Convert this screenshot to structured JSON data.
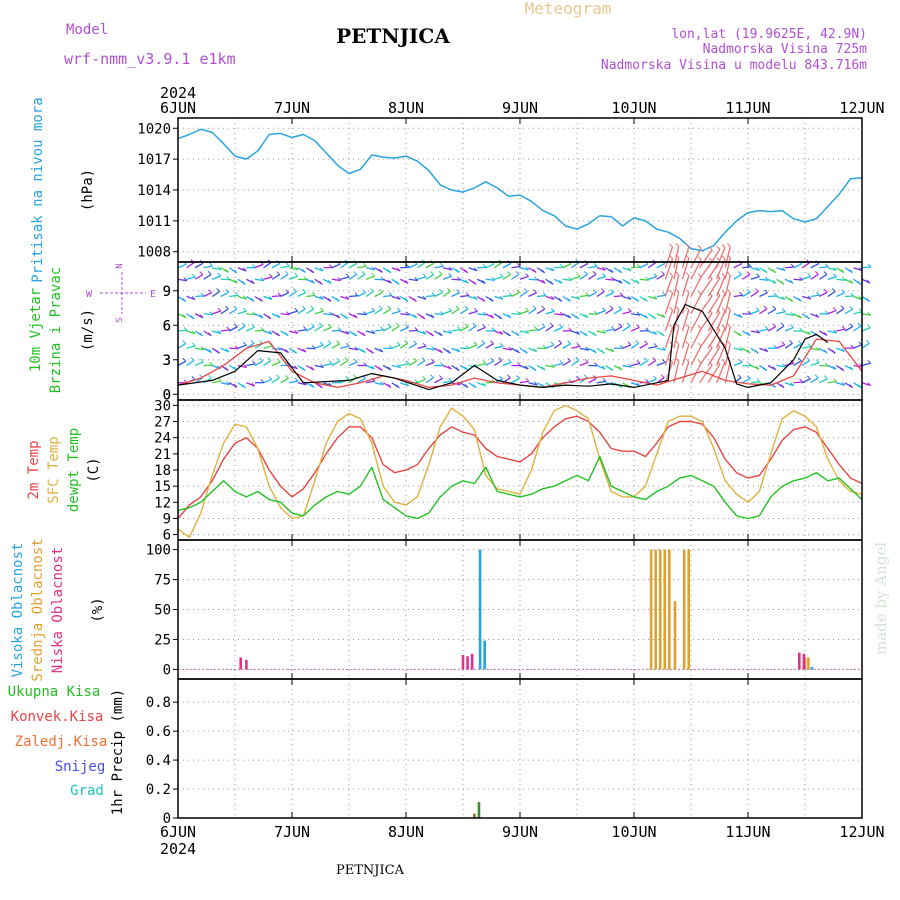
{
  "header": {
    "model_label": "Model",
    "model_name": "wrf-nmm_v3.9.1 e1km",
    "station": "PETNJICA",
    "meteogram": "Meteogram",
    "lonlat": "lon,lat (19.9625E, 42.9N)",
    "altitude": "Nadmorska Visina 725m",
    "model_altitude": "Nadmorska Visina u modelu 843.716m",
    "year": "2024",
    "footer_station": "PETNJICA",
    "watermark": "made by Angel"
  },
  "colors": {
    "pressure": "#29a3e0",
    "temp2m": "#e84545",
    "sfc_temp": "#e0b040",
    "dewpt": "#22c022",
    "high_cloud": "#29a3e0",
    "mid_cloud": "#e0a030",
    "low_cloud": "#e0308a",
    "total_precip": "#22c022",
    "conv_precip": "#e84545",
    "frozen": "#f07030",
    "snow": "#4a4ae0",
    "hail": "#20c0c0",
    "wind_label": "#22c022",
    "wind_axis": "#b050d0",
    "gust_line": "#000000",
    "wind_speed_line": "#e84545"
  },
  "chart_data": [
    {
      "type": "line",
      "panel": "pressure",
      "ylabel": [
        "Pritisak na nivou mora",
        "(hPa)"
      ],
      "x_ticks": [
        "6JUN",
        "7JUN",
        "8JUN",
        "9JUN",
        "10JUN",
        "11JUN",
        "12JUN"
      ],
      "y_ticks": [
        1008,
        1011,
        1014,
        1017,
        1020
      ],
      "ylim": [
        1007,
        1021
      ],
      "grid": true,
      "series": [
        {
          "x": [
            0,
            0.1,
            0.2,
            0.3,
            0.4,
            0.5,
            0.6,
            0.7,
            0.8,
            0.9,
            1.0,
            1.1,
            1.2,
            1.3,
            1.4,
            1.5,
            1.6,
            1.7,
            1.8,
            1.9,
            2.0,
            2.1,
            2.2,
            2.3,
            2.4,
            2.5,
            2.6,
            2.7,
            2.8,
            2.9,
            3.0,
            3.1,
            3.2,
            3.3,
            3.4,
            3.5,
            3.6,
            3.7,
            3.8,
            3.9,
            4.0,
            4.1,
            4.2,
            4.3,
            4.4,
            4.5,
            4.6,
            4.7,
            4.8,
            4.9,
            5.0,
            5.1,
            5.2,
            5.3,
            5.4,
            5.5,
            5.6,
            5.7,
            5.8,
            5.9,
            6.0
          ],
          "values": [
            1019.0,
            1019.4,
            1019.9,
            1019.6,
            1018.5,
            1017.3,
            1017.0,
            1017.8,
            1019.4,
            1019.5,
            1019.1,
            1019.4,
            1018.8,
            1017.6,
            1016.4,
            1015.6,
            1016.0,
            1017.4,
            1017.2,
            1017.1,
            1017.3,
            1016.8,
            1015.9,
            1014.5,
            1014.0,
            1013.8,
            1014.2,
            1014.8,
            1014.2,
            1013.4,
            1013.5,
            1012.9,
            1012.0,
            1011.5,
            1010.5,
            1010.2,
            1010.7,
            1011.5,
            1011.4,
            1010.5,
            1011.3,
            1011.0,
            1010.2,
            1009.9,
            1009.3,
            1008.3,
            1008.1,
            1008.6,
            1009.9,
            1011.0,
            1011.8,
            1012.0,
            1011.9,
            1012.0,
            1011.2,
            1010.9,
            1011.2,
            1012.4,
            1013.6,
            1015.1,
            1015.2
          ]
        }
      ]
    },
    {
      "type": "line",
      "panel": "wind",
      "ylabel": [
        "10m Vjetar",
        "Brzina i Pravac",
        "(m/s)"
      ],
      "compass": [
        "N",
        "W",
        "S",
        "E"
      ],
      "y_ticks": [
        0,
        3,
        6,
        9
      ],
      "ylim": [
        -0.5,
        11.5
      ],
      "grid": true,
      "barb_levels": [
        1,
        2.5,
        4,
        5.5,
        7,
        8.5,
        10,
        11
      ],
      "series": [
        {
          "name": "gust",
          "x": [
            0.0,
            0.3,
            0.5,
            0.7,
            0.9,
            1.1,
            1.5,
            1.7,
            1.9,
            2.2,
            2.4,
            2.6,
            2.8,
            3.0,
            3.2,
            3.4,
            3.6,
            3.8,
            4.0,
            4.2,
            4.3,
            4.35,
            4.45,
            4.6,
            4.8,
            4.9,
            5.0,
            5.2,
            5.4,
            5.5,
            5.6,
            5.7
          ],
          "values": [
            0.8,
            1.2,
            2.0,
            3.8,
            3.6,
            1.0,
            1.2,
            1.8,
            1.4,
            0.4,
            1.0,
            2.5,
            1.2,
            0.8,
            0.6,
            0.8,
            0.7,
            0.9,
            0.6,
            1.0,
            1.2,
            6.0,
            7.8,
            7.2,
            4.0,
            0.9,
            0.6,
            1.0,
            3.0,
            4.8,
            5.2,
            4.5
          ]
        },
        {
          "name": "speed",
          "x": [
            0.0,
            0.2,
            0.4,
            0.6,
            0.8,
            1.0,
            1.2,
            1.4,
            1.6,
            1.8,
            2.0,
            2.2,
            2.4,
            2.6,
            2.8,
            3.0,
            3.2,
            3.4,
            3.6,
            3.8,
            4.0,
            4.2,
            4.4,
            4.6,
            4.8,
            5.0,
            5.2,
            5.4,
            5.6,
            5.8,
            6.0
          ],
          "values": [
            0.8,
            1.4,
            2.5,
            4.0,
            4.6,
            2.0,
            1.0,
            0.6,
            1.0,
            1.6,
            1.2,
            0.6,
            0.8,
            1.4,
            1.0,
            0.8,
            0.6,
            1.0,
            1.4,
            1.6,
            1.2,
            0.8,
            1.4,
            2.0,
            1.2,
            0.9,
            0.8,
            1.6,
            4.8,
            4.6,
            2.0
          ]
        }
      ]
    },
    {
      "type": "line",
      "panel": "temperature",
      "ylabel": [
        "2m Temp",
        "SFC Temp",
        "dewpt Temp",
        "(C)"
      ],
      "y_ticks": [
        6,
        9,
        12,
        15,
        18,
        21,
        24,
        27,
        30
      ],
      "ylim": [
        5,
        31
      ],
      "grid": true,
      "series": [
        {
          "name": "2m Temp",
          "x": [
            0,
            0.1,
            0.2,
            0.3,
            0.4,
            0.5,
            0.6,
            0.7,
            0.8,
            0.9,
            1.0,
            1.1,
            1.2,
            1.3,
            1.4,
            1.5,
            1.6,
            1.7,
            1.8,
            1.9,
            2.0,
            2.1,
            2.2,
            2.3,
            2.4,
            2.5,
            2.6,
            2.7,
            2.8,
            2.9,
            3.0,
            3.1,
            3.2,
            3.3,
            3.4,
            3.5,
            3.6,
            3.7,
            3.8,
            3.9,
            4.0,
            4.1,
            4.2,
            4.3,
            4.4,
            4.5,
            4.6,
            4.7,
            4.8,
            4.9,
            5.0,
            5.1,
            5.2,
            5.3,
            5.4,
            5.5,
            5.6,
            5.7,
            5.8,
            5.9,
            6.0
          ],
          "values": [
            9.0,
            11.5,
            13.0,
            16.0,
            20.0,
            23.0,
            24.0,
            22.0,
            18.0,
            15.0,
            13.0,
            14.5,
            17.5,
            21.0,
            24.0,
            26.0,
            26.0,
            24.0,
            19.0,
            17.5,
            18.0,
            19.0,
            22.0,
            24.5,
            26.0,
            25.0,
            24.5,
            22.0,
            20.5,
            20.0,
            19.5,
            21.0,
            24.0,
            26.0,
            27.5,
            28.0,
            27.0,
            25.0,
            22.0,
            21.5,
            21.5,
            20.5,
            23.0,
            26.0,
            27.0,
            27.0,
            26.5,
            24.0,
            20.0,
            17.5,
            16.5,
            17.0,
            20.0,
            23.5,
            25.5,
            26.0,
            25.0,
            22.0,
            19.0,
            16.5,
            15.5
          ]
        },
        {
          "name": "SFC Temp",
          "x": [
            0,
            0.1,
            0.2,
            0.3,
            0.4,
            0.5,
            0.6,
            0.7,
            0.8,
            0.9,
            1.0,
            1.1,
            1.2,
            1.3,
            1.4,
            1.5,
            1.6,
            1.7,
            1.8,
            1.9,
            2.0,
            2.1,
            2.2,
            2.3,
            2.4,
            2.5,
            2.6,
            2.7,
            2.8,
            2.9,
            3.0,
            3.1,
            3.2,
            3.3,
            3.4,
            3.5,
            3.6,
            3.7,
            3.8,
            3.9,
            4.0,
            4.1,
            4.2,
            4.3,
            4.4,
            4.5,
            4.6,
            4.7,
            4.8,
            4.9,
            5.0,
            5.1,
            5.2,
            5.3,
            5.4,
            5.5,
            5.6,
            5.7,
            5.8,
            5.9,
            6.0
          ],
          "values": [
            7.0,
            5.5,
            10.0,
            17.0,
            23.0,
            26.5,
            26.0,
            22.0,
            15.0,
            11.0,
            9.0,
            9.5,
            16.0,
            23.0,
            27.0,
            28.5,
            27.5,
            23.0,
            15.0,
            12.0,
            11.5,
            13.0,
            19.0,
            26.0,
            29.5,
            28.0,
            25.5,
            17.0,
            14.5,
            14.0,
            13.5,
            18.0,
            25.0,
            29.0,
            30.0,
            29.0,
            27.5,
            20.0,
            14.0,
            13.0,
            13.0,
            15.0,
            21.0,
            27.0,
            28.0,
            28.0,
            27.0,
            22.0,
            16.0,
            13.5,
            12.0,
            14.0,
            21.0,
            27.5,
            29.0,
            28.0,
            26.0,
            20.0,
            16.0,
            14.0,
            13.5
          ]
        },
        {
          "name": "dewpt Temp",
          "x": [
            0,
            0.1,
            0.2,
            0.3,
            0.4,
            0.5,
            0.6,
            0.7,
            0.8,
            0.9,
            1.0,
            1.1,
            1.2,
            1.3,
            1.4,
            1.5,
            1.6,
            1.7,
            1.8,
            1.9,
            2.0,
            2.1,
            2.2,
            2.3,
            2.4,
            2.5,
            2.6,
            2.7,
            2.8,
            2.9,
            3.0,
            3.1,
            3.2,
            3.3,
            3.4,
            3.5,
            3.6,
            3.7,
            3.8,
            3.9,
            4.0,
            4.1,
            4.2,
            4.3,
            4.4,
            4.5,
            4.6,
            4.7,
            4.8,
            4.9,
            5.0,
            5.1,
            5.2,
            5.3,
            5.4,
            5.5,
            5.6,
            5.7,
            5.8,
            5.9,
            6.0
          ],
          "values": [
            10.5,
            11.0,
            12.0,
            14.0,
            16.0,
            14.0,
            13.0,
            14.0,
            12.5,
            12.0,
            10.0,
            9.5,
            11.5,
            13.0,
            14.0,
            13.5,
            15.0,
            18.5,
            12.5,
            11.0,
            9.5,
            9.0,
            10.0,
            13.0,
            15.0,
            16.0,
            15.5,
            18.5,
            14.0,
            13.5,
            13.0,
            13.5,
            14.5,
            15.0,
            16.0,
            17.0,
            16.0,
            20.5,
            15.0,
            14.0,
            13.0,
            12.5,
            14.0,
            15.0,
            16.5,
            17.0,
            16.0,
            15.0,
            12.0,
            9.5,
            9.0,
            9.5,
            13.0,
            15.0,
            16.0,
            16.5,
            17.5,
            16.0,
            16.5,
            14.5,
            12.5
          ]
        }
      ]
    },
    {
      "type": "bar",
      "panel": "cloud",
      "ylabel": [
        "Visoka Oblacnost",
        "Srednja Oblacnost",
        "Niska Oblacnost",
        "(%)"
      ],
      "y_ticks": [
        0,
        25,
        50,
        75,
        100
      ],
      "ylim": [
        -8,
        108
      ],
      "grid": true,
      "series": [
        {
          "name": "Visoka Oblacnost",
          "x": [
            2.65,
            2.69,
            5.56
          ],
          "values": [
            100,
            24,
            2
          ]
        },
        {
          "name": "Srednja Oblacnost",
          "x": [
            4.15,
            4.19,
            4.23,
            4.27,
            4.31,
            4.36,
            4.44,
            4.48,
            5.5,
            5.53
          ],
          "values": [
            100,
            100,
            100,
            100,
            100,
            57,
            100,
            100,
            10,
            10
          ]
        },
        {
          "name": "Niska Oblacnost",
          "x": [
            0.55,
            0.6,
            2.5,
            2.54,
            2.58,
            5.45,
            5.49
          ],
          "values": [
            10,
            8,
            12,
            11,
            13,
            14,
            13
          ]
        }
      ]
    },
    {
      "type": "bar",
      "panel": "precip",
      "ylabel": [
        "Ukupna Kisa",
        "Konvek.Kisa",
        "Zaledj.Kisa",
        "Snijeg",
        "Grad",
        "1hr Precip (mm)"
      ],
      "y_ticks": [
        0,
        0.2,
        0.4,
        0.6,
        0.8
      ],
      "ylim": [
        0,
        0.96
      ],
      "grid": true,
      "series": [
        {
          "name": "Ukupna Kisa",
          "x": [
            2.6,
            2.64
          ],
          "values": [
            0.03,
            0.11
          ]
        }
      ]
    }
  ]
}
